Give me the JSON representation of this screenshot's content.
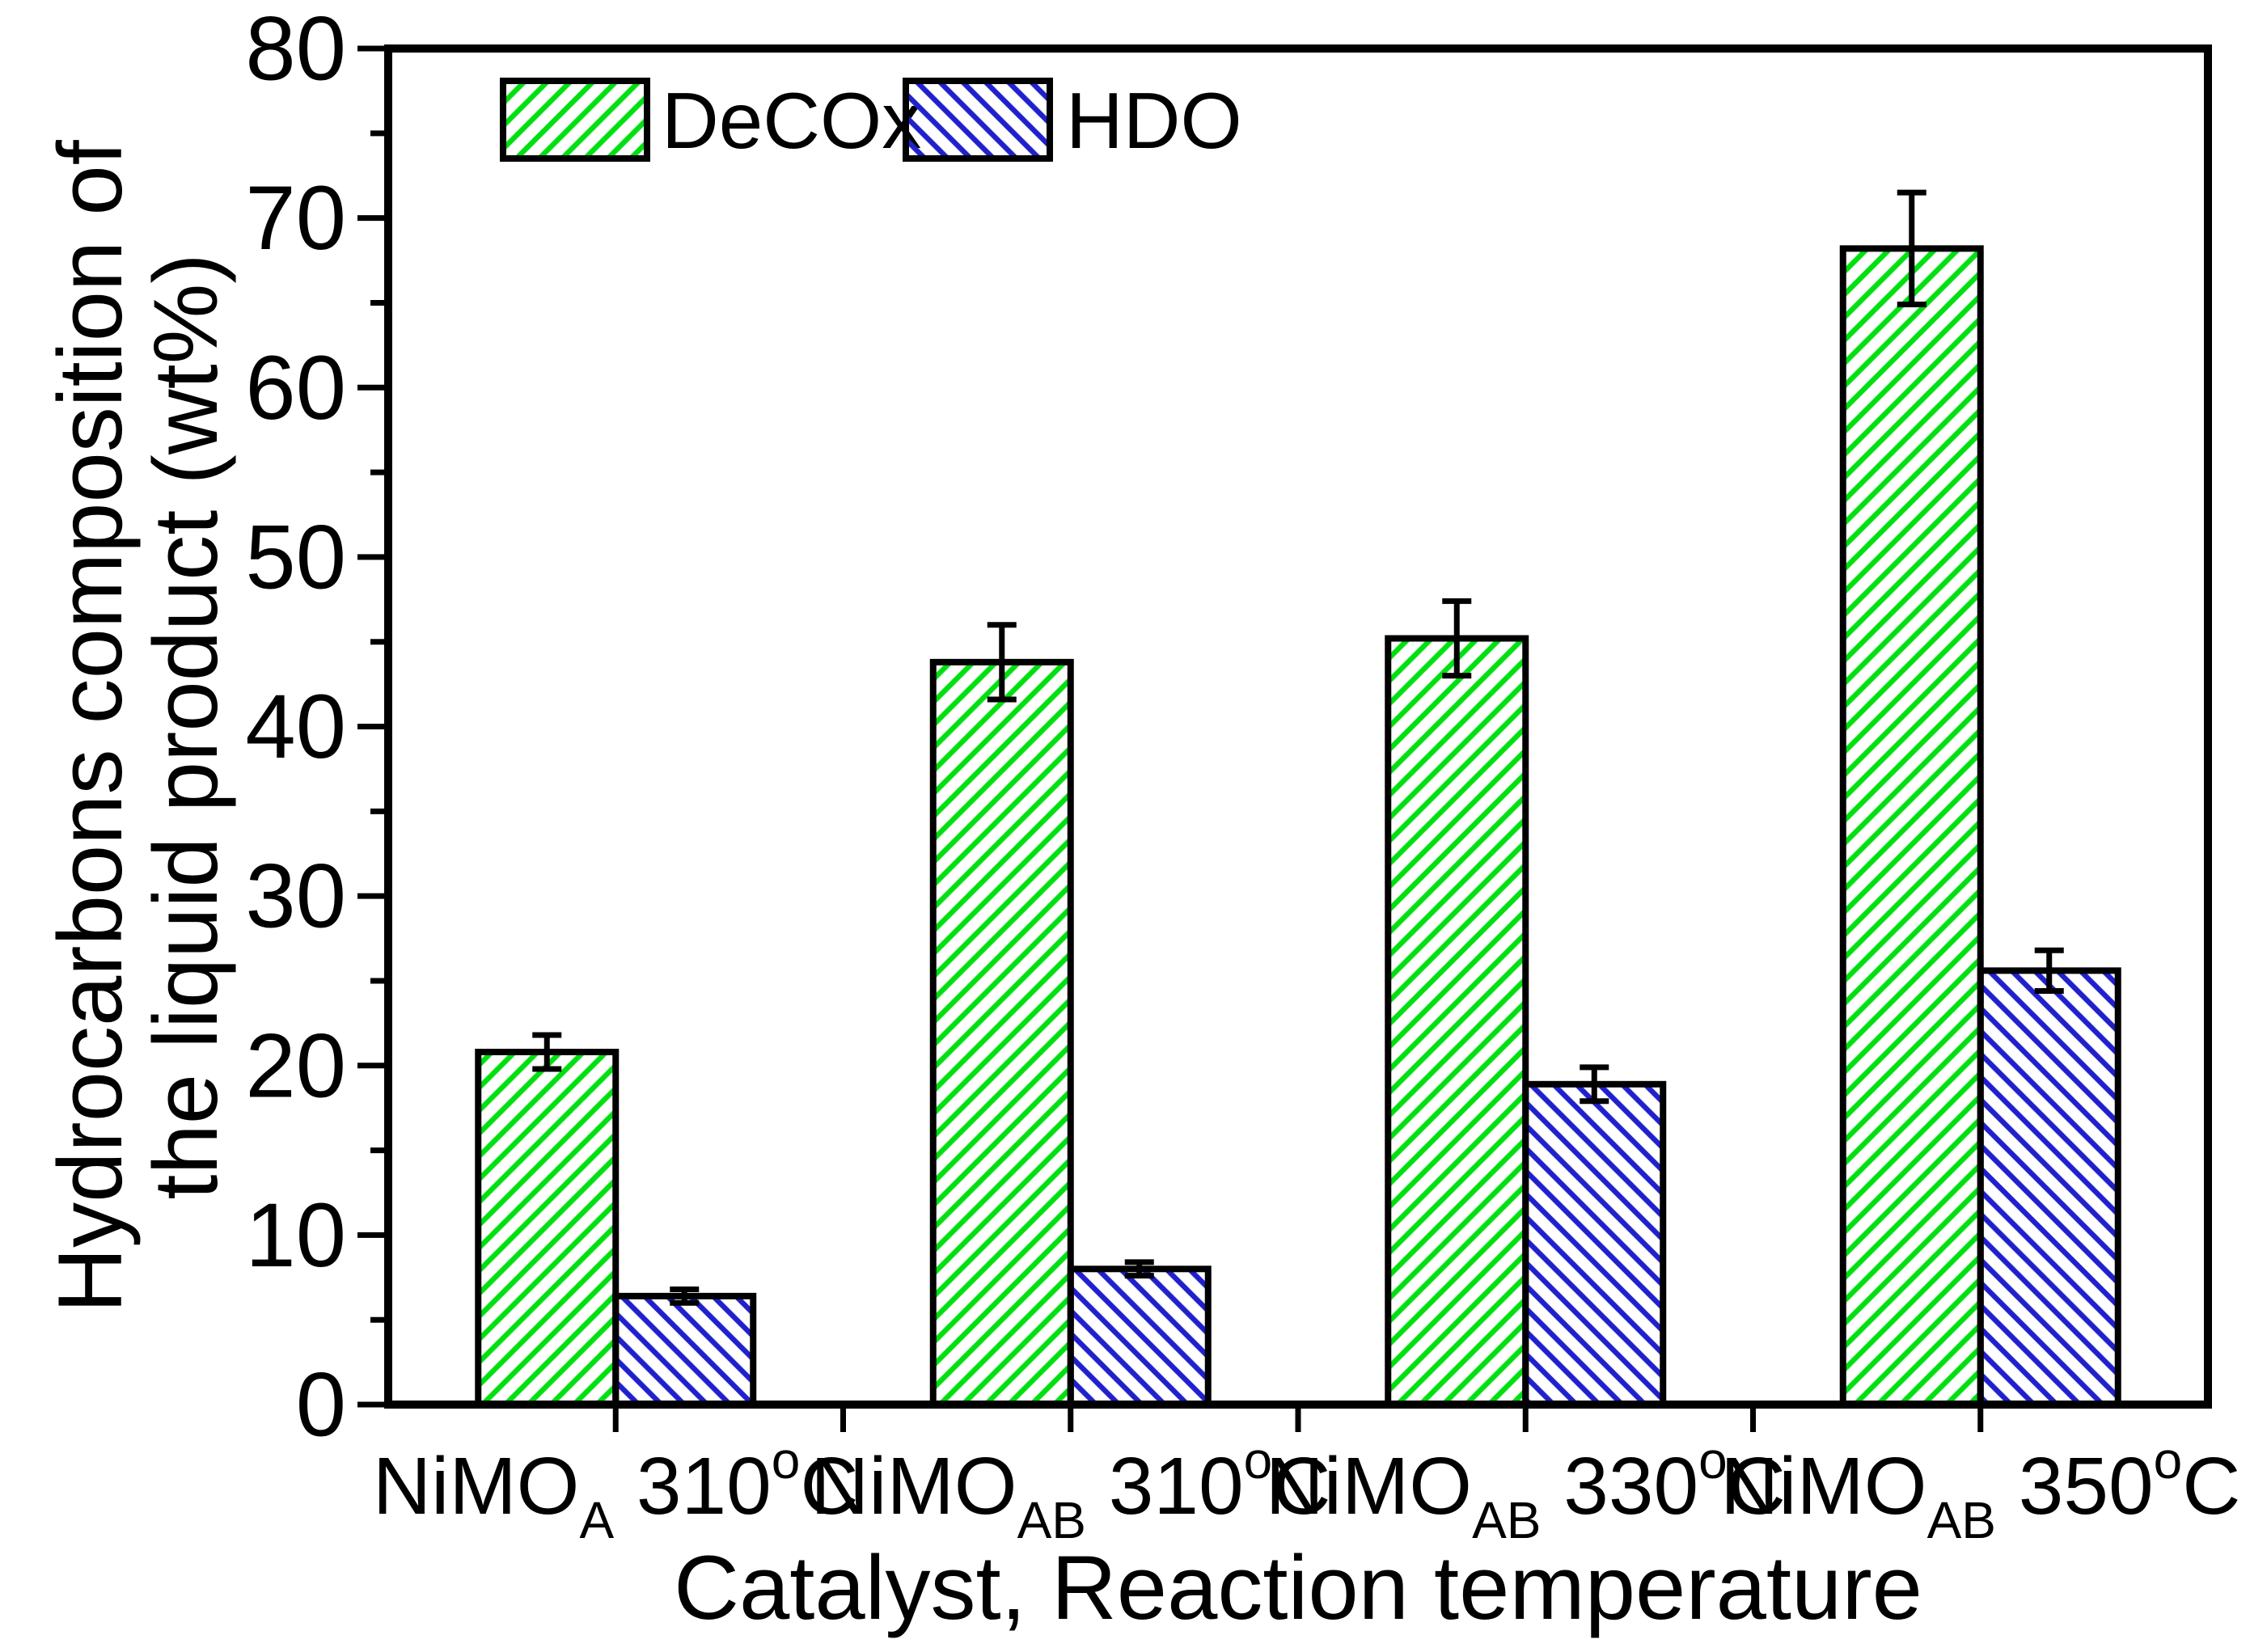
{
  "chart_data": {
    "type": "bar",
    "title": "",
    "xlabel": "Catalyst, Reaction temperature",
    "ylabel_line1": "Hydrocarbons composition of",
    "ylabel_line2": "the liquid product (wt%)",
    "ylim": [
      0,
      80
    ],
    "y_major_tick_step": 10,
    "y_minor_tick_step": 5,
    "y_tick_labels": [
      "0",
      "10",
      "20",
      "30",
      "40",
      "50",
      "60",
      "70",
      "80"
    ],
    "grid": false,
    "legend": {
      "position": "top-left-inside",
      "items": [
        {
          "label": "DeCOx",
          "swatch": "green-forward-hatch"
        },
        {
          "label": "HDO",
          "swatch": "blue-backward-hatch"
        }
      ]
    },
    "categories": [
      {
        "material": "NiMO",
        "material_subscript": "A",
        "temperature": "310",
        "degree": "o",
        "unit": "C"
      },
      {
        "material": "NiMO",
        "material_subscript": "AB",
        "temperature": "310",
        "degree": "o",
        "unit": "C"
      },
      {
        "material": "NiMO",
        "material_subscript": "AB",
        "temperature": "330",
        "degree": "o",
        "unit": "C"
      },
      {
        "material": "NiMO",
        "material_subscript": "AB",
        "temperature": "350",
        "degree": "o",
        "unit": "C"
      }
    ],
    "series": [
      {
        "name": "DeCOx",
        "hatch_direction": "forward",
        "hatch_color": "#00e010",
        "values": [
          20.8,
          43.8,
          45.2,
          68.2
        ],
        "errors": [
          1.0,
          2.2,
          2.2,
          3.3
        ]
      },
      {
        "name": "HDO",
        "hatch_direction": "backward",
        "hatch_color": "#2020cc",
        "values": [
          6.4,
          8.0,
          18.9,
          25.6
        ],
        "errors": [
          0.4,
          0.4,
          1.0,
          1.2
        ]
      }
    ],
    "colors": {
      "axis": "#000000",
      "background": "#ffffff"
    }
  }
}
